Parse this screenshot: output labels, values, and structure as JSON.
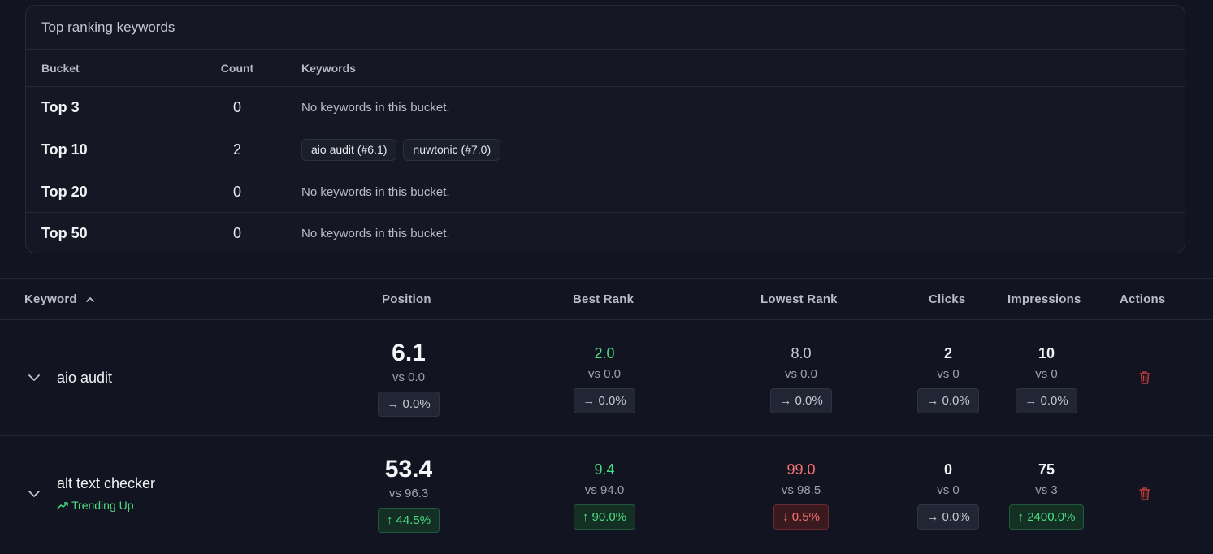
{
  "ranking": {
    "title": "Top ranking keywords",
    "headers": {
      "bucket": "Bucket",
      "count": "Count",
      "keywords": "Keywords"
    },
    "rows": [
      {
        "bucket": "Top 3",
        "count": "0",
        "empty": "No keywords in this bucket.",
        "chips": []
      },
      {
        "bucket": "Top 10",
        "count": "2",
        "empty": "",
        "chips": [
          "aio audit (#6.1)",
          "nuwtonic (#7.0)"
        ]
      },
      {
        "bucket": "Top 20",
        "count": "0",
        "empty": "No keywords in this bucket.",
        "chips": []
      },
      {
        "bucket": "Top 50",
        "count": "0",
        "empty": "No keywords in this bucket.",
        "chips": []
      }
    ]
  },
  "table": {
    "headers": {
      "keyword": "Keyword",
      "position": "Position",
      "best_rank": "Best Rank",
      "lowest_rank": "Lowest Rank",
      "clicks": "Clicks",
      "impressions": "Impressions",
      "actions": "Actions"
    },
    "rows": [
      {
        "keyword": "aio audit",
        "trend": "",
        "position": {
          "value": "6.1",
          "vs": "vs 0.0",
          "change": "→ 0.0%"
        },
        "best": {
          "value": "2.0",
          "vs": "vs 0.0",
          "change": "→ 0.0%"
        },
        "lowest": {
          "value": "8.0",
          "vs": "vs 0.0",
          "change": "→ 0.0%"
        },
        "clicks": {
          "value": "2",
          "vs": "vs 0",
          "change": "→ 0.0%"
        },
        "impressions": {
          "value": "10",
          "vs": "vs 0",
          "change": "→ 0.0%"
        }
      },
      {
        "keyword": "alt text checker",
        "trend": "Trending Up",
        "position": {
          "value": "53.4",
          "vs": "vs 96.3",
          "change": "↑ 44.5%"
        },
        "best": {
          "value": "9.4",
          "vs": "vs 94.0",
          "change": "↑ 90.0%"
        },
        "lowest": {
          "value": "99.0",
          "vs": "vs 98.5",
          "change": "↓ 0.5%"
        },
        "clicks": {
          "value": "0",
          "vs": "vs 0",
          "change": "→ 0.0%"
        },
        "impressions": {
          "value": "75",
          "vs": "vs 3",
          "change": "↑ 2400.0%"
        }
      }
    ]
  },
  "colors": {
    "positive": "#4ade80",
    "negative": "#f87171",
    "danger_icon": "#c23a3a",
    "background": "#121521"
  },
  "icons": {
    "sort": "chevron-up-icon",
    "expand": "chevron-down-icon",
    "trend": "trending-up-icon",
    "delete": "trash-icon"
  }
}
